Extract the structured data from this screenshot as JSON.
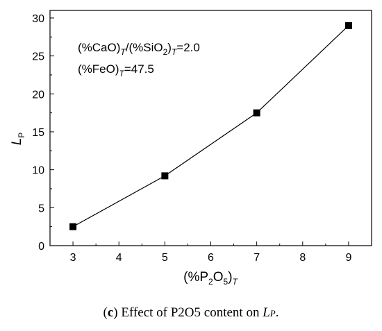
{
  "chart_data": {
    "type": "line",
    "x": [
      3,
      5,
      7,
      9
    ],
    "series": [
      {
        "values": [
          2.5,
          9.2,
          17.5,
          29.0
        ],
        "marker": "square",
        "color": "#000000"
      }
    ],
    "xlim": [
      2.5,
      9.5
    ],
    "ylim": [
      0,
      31
    ],
    "xticks": [
      "3",
      "4",
      "5",
      "6",
      "7",
      "8",
      "9"
    ],
    "yticks": [
      "0",
      "5",
      "10",
      "15",
      "20",
      "25",
      "30"
    ],
    "xlabel": {
      "main": "(%P",
      "sub1": "2",
      "mid": "O",
      "sub2": "5",
      "close": ")",
      "sub3": "T"
    },
    "ylabel": {
      "main": "L",
      "sub": "P"
    },
    "annotations": {
      "line1": {
        "a": "(%CaO)",
        "a_sub": "T",
        "b": "/(%SiO",
        "b_sub1": "2",
        "c": ")",
        "c_sub": "T",
        "d": "=2.0"
      },
      "line2": {
        "a": "(%FeO)",
        "a_sub": "T",
        "b": "=47.5"
      }
    },
    "grid": false
  },
  "caption": {
    "open": "(",
    "letter": "c",
    "close": ")",
    "text": " Effect of P2O5 content on ",
    "var": "L",
    "var_sub": "P",
    "end": "."
  }
}
